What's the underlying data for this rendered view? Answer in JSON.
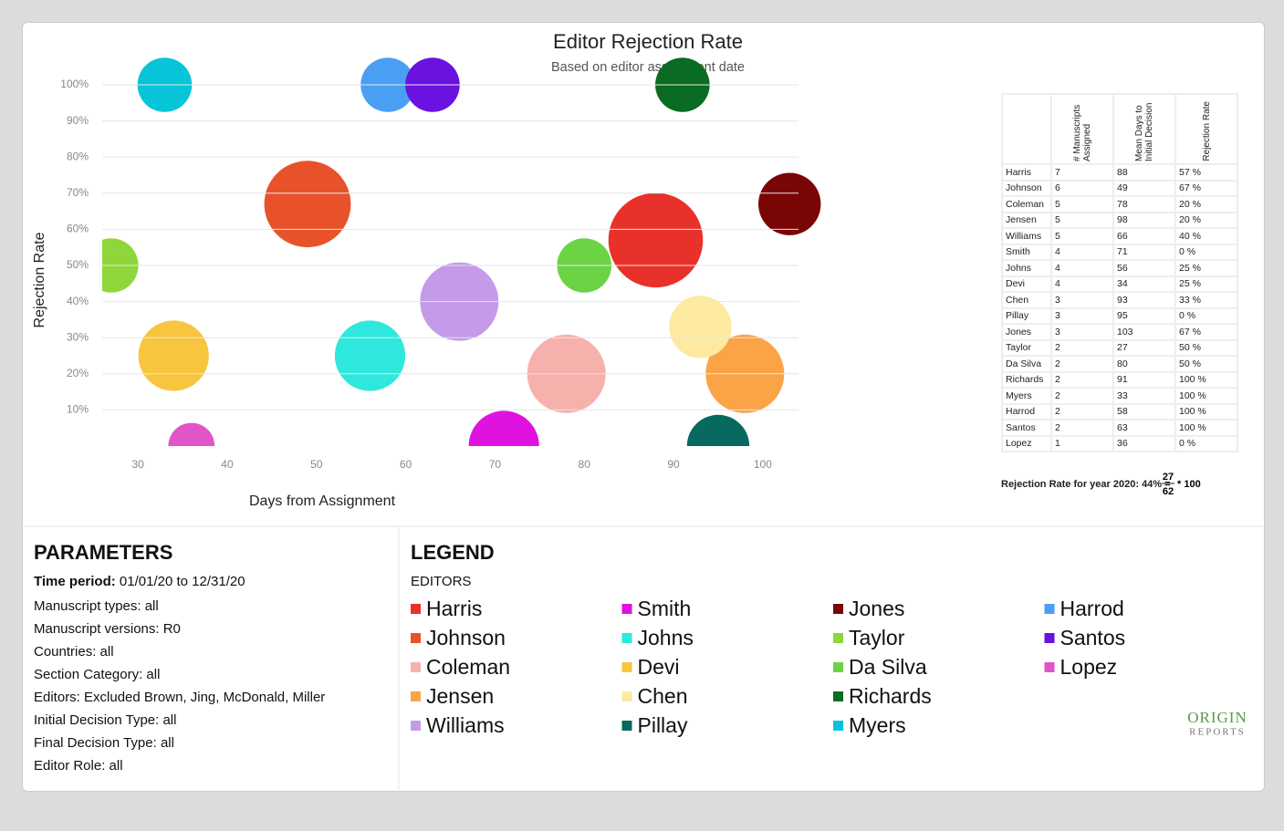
{
  "chart_data": {
    "type": "bubble",
    "title": "Editor Rejection Rate",
    "subtitle": "Based on editor assignment date",
    "x_label": "Days from Assignment",
    "y_label": "Rejection Rate",
    "names": [
      "Harris",
      "Johnson",
      "Coleman",
      "Jensen",
      "Williams",
      "Smith",
      "Johns",
      "Devi",
      "Chen",
      "Pillay",
      "Jones",
      "Taylor",
      "Da Silva",
      "Richards",
      "Myers",
      "Harrod",
      "Santos",
      "Lopez"
    ],
    "colors": [
      "#e8312a",
      "#e8522a",
      "#f6b1ad",
      "#fba347",
      "#c49be8",
      "#e012e0",
      "#2ee8dd",
      "#f8c53f",
      "#fdeaa0",
      "#07695f",
      "#7a0505",
      "#8fd63a",
      "#6ad444",
      "#0a6b22",
      "#08c4d8",
      "#4a9ff5",
      "#6a12e0",
      "#e055c8"
    ],
    "x": [
      88,
      49,
      78,
      98,
      66,
      71,
      56,
      34,
      93,
      95,
      103,
      27,
      80,
      91,
      33,
      58,
      63,
      36
    ],
    "values": [
      57,
      67,
      20,
      20,
      40,
      0,
      25,
      25,
      33,
      0,
      67,
      50,
      50,
      100,
      100,
      100,
      100,
      0
    ],
    "value_labels": [
      "57 %",
      "67 %",
      "20 %",
      "20 %",
      "40 %",
      "0 %",
      "25 %",
      "25 %",
      "33 %",
      "0 %",
      "67 %",
      "50 %",
      "50 %",
      "100 %",
      "100 %",
      "100 %",
      "100 %",
      "0 %"
    ],
    "sizes": [
      7,
      6,
      5,
      5,
      5,
      4,
      4,
      4,
      3,
      3,
      3,
      2,
      2,
      2,
      2,
      2,
      2,
      1
    ],
    "xlim": [
      26,
      104
    ],
    "xticks": [
      30,
      40,
      50,
      60,
      70,
      80,
      90,
      100
    ],
    "ylim": [
      0,
      100
    ],
    "yticks": [
      {
        "value": 10,
        "label": "10%"
      },
      {
        "value": 20,
        "label": "20%"
      },
      {
        "value": 30,
        "label": "30%"
      },
      {
        "value": 40,
        "label": "40%"
      },
      {
        "value": 50,
        "label": "50%"
      },
      {
        "value": 60,
        "label": "60%"
      },
      {
        "value": 70,
        "label": "70%"
      },
      {
        "value": 80,
        "label": "80%"
      },
      {
        "value": 90,
        "label": "90%"
      },
      {
        "value": 100,
        "label": "100%"
      }
    ],
    "grid": true
  },
  "table": {
    "headers": [
      "# Manuscripts Assigned",
      "Mean Days to Initial Decision",
      "Rejection Rate"
    ]
  },
  "footnote": {
    "label": "Rejection Rate for year 2020: 44% =",
    "numerator": "27",
    "denominator": "62",
    "suffix": "* 100"
  },
  "parameters": {
    "title": "PARAMETERS",
    "first": {
      "label": "Time period:",
      "value": "01/01/20 to 12/31/20"
    },
    "items": [
      "Manuscript types: all",
      "Manuscript versions: R0",
      "Countries: all",
      "Section Category: all",
      "Editors: Excluded Brown, Jing, McDonald, Miller",
      "Initial Decision Type: all",
      "Final Decision Type: all",
      "Editor Role: all"
    ]
  },
  "legend": {
    "title": "LEGEND",
    "subtitle": "EDITORS"
  },
  "logo": {
    "top": "ORIGIN",
    "bottom": "REPORTS"
  }
}
